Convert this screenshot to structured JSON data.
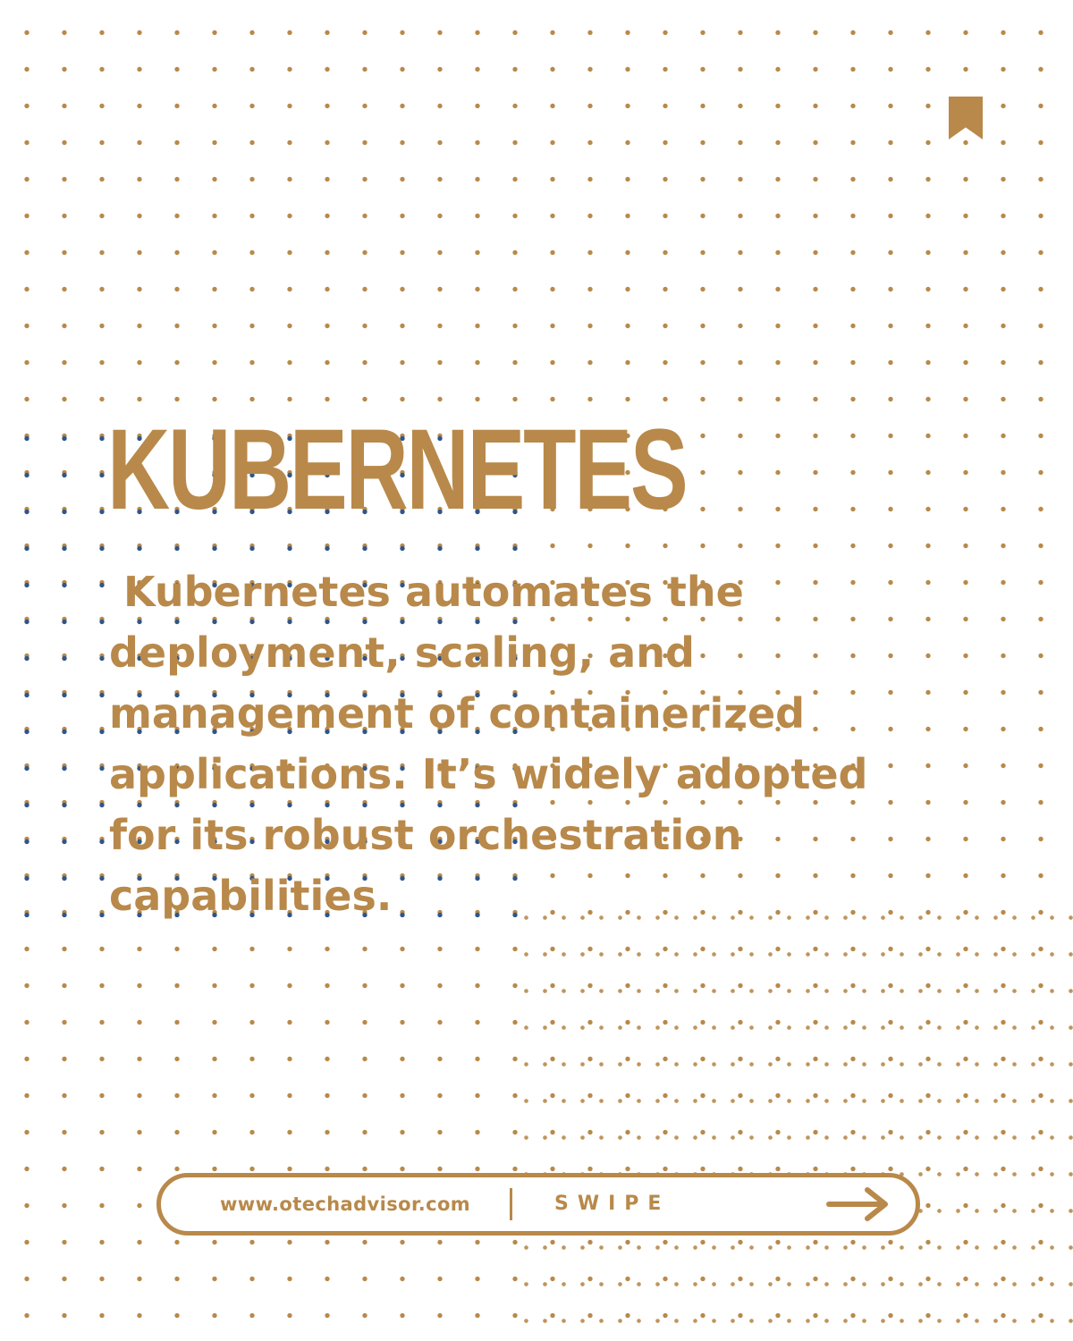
{
  "slide": {
    "title": "KUBERNETES",
    "description": " Kubernetes automates the\ndeployment, scaling, and\nmanagement of containerized\napplications. It’s widely adopted\nfor its robust orchestration\ncapabilities."
  },
  "footer": {
    "website": "www.otechadvisor.com",
    "swipe_label": "SWIPE"
  },
  "icons": {
    "bookmark": "bookmark-icon",
    "arrow": "arrow-right-icon"
  },
  "colors": {
    "accent": "#b8894a",
    "secondary_dots": "#2f5688",
    "background": "#ffffff"
  }
}
